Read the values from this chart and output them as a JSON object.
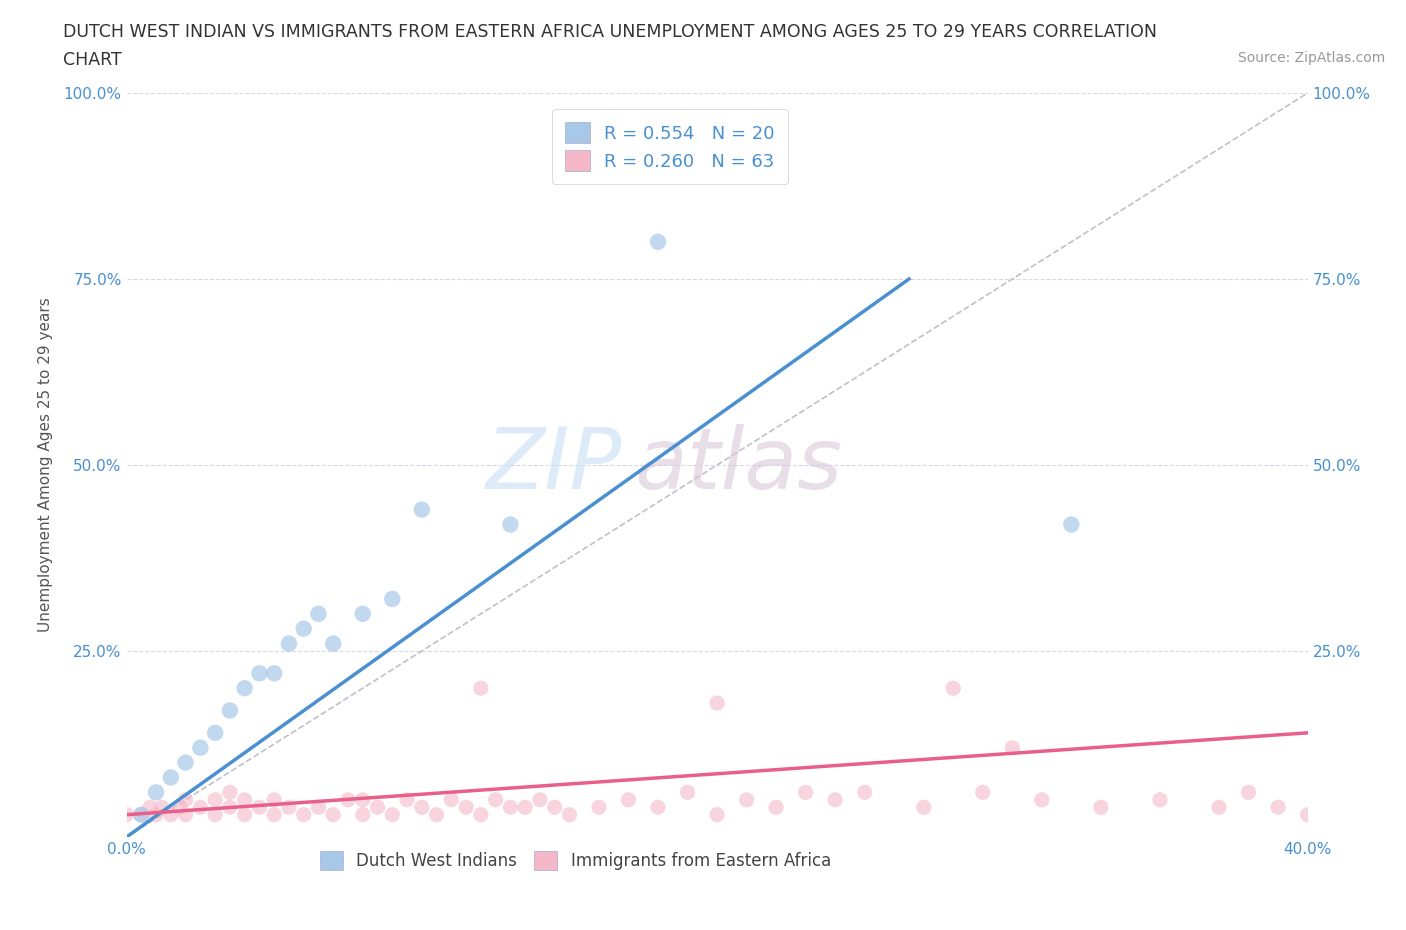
{
  "title_line1": "DUTCH WEST INDIAN VS IMMIGRANTS FROM EASTERN AFRICA UNEMPLOYMENT AMONG AGES 25 TO 29 YEARS CORRELATION",
  "title_line2": "CHART",
  "source_text": "Source: ZipAtlas.com",
  "ylabel": "Unemployment Among Ages 25 to 29 years",
  "xlim": [
    0.0,
    0.4
  ],
  "ylim": [
    0.0,
    1.0
  ],
  "blue_color": "#a8c8e8",
  "pink_color": "#f4b8c8",
  "blue_line_color": "#4a90d0",
  "pink_line_color": "#e8608a",
  "watermark_zip": "ZIP",
  "watermark_atlas": "atlas",
  "legend1_label": "R = 0.554   N = 20",
  "legend2_label": "R = 0.260   N = 63",
  "series1_name": "Dutch West Indians",
  "series2_name": "Immigrants from Eastern Africa",
  "blue_scatter_x": [
    0.005,
    0.01,
    0.015,
    0.02,
    0.025,
    0.03,
    0.035,
    0.04,
    0.045,
    0.05,
    0.055,
    0.06,
    0.065,
    0.07,
    0.08,
    0.09,
    0.1,
    0.13,
    0.18,
    0.32
  ],
  "blue_scatter_y": [
    0.03,
    0.06,
    0.08,
    0.1,
    0.12,
    0.14,
    0.17,
    0.2,
    0.22,
    0.22,
    0.26,
    0.28,
    0.3,
    0.26,
    0.3,
    0.32,
    0.44,
    0.42,
    0.8,
    0.42
  ],
  "pink_scatter_x": [
    0.0,
    0.005,
    0.008,
    0.01,
    0.012,
    0.015,
    0.018,
    0.02,
    0.02,
    0.025,
    0.03,
    0.03,
    0.035,
    0.035,
    0.04,
    0.04,
    0.045,
    0.05,
    0.05,
    0.055,
    0.06,
    0.065,
    0.07,
    0.075,
    0.08,
    0.08,
    0.085,
    0.09,
    0.095,
    0.1,
    0.105,
    0.11,
    0.115,
    0.12,
    0.125,
    0.13,
    0.135,
    0.14,
    0.145,
    0.15,
    0.16,
    0.17,
    0.18,
    0.19,
    0.2,
    0.21,
    0.22,
    0.23,
    0.24,
    0.25,
    0.27,
    0.29,
    0.31,
    0.33,
    0.35,
    0.37,
    0.38,
    0.39,
    0.4,
    0.28,
    0.3,
    0.12,
    0.2
  ],
  "pink_scatter_y": [
    0.03,
    0.03,
    0.04,
    0.03,
    0.04,
    0.03,
    0.04,
    0.03,
    0.05,
    0.04,
    0.03,
    0.05,
    0.04,
    0.06,
    0.03,
    0.05,
    0.04,
    0.03,
    0.05,
    0.04,
    0.03,
    0.04,
    0.03,
    0.05,
    0.03,
    0.05,
    0.04,
    0.03,
    0.05,
    0.04,
    0.03,
    0.05,
    0.04,
    0.03,
    0.05,
    0.04,
    0.04,
    0.05,
    0.04,
    0.03,
    0.04,
    0.05,
    0.04,
    0.06,
    0.03,
    0.05,
    0.04,
    0.06,
    0.05,
    0.06,
    0.04,
    0.06,
    0.05,
    0.04,
    0.05,
    0.04,
    0.06,
    0.04,
    0.03,
    0.2,
    0.12,
    0.2,
    0.18
  ],
  "blue_trend_x": [
    0.0,
    0.265
  ],
  "blue_trend_y": [
    0.0,
    0.75
  ],
  "pink_trend_x": [
    0.0,
    0.4
  ],
  "pink_trend_y": [
    0.03,
    0.14
  ],
  "ref_line_x": [
    0.0,
    0.4
  ],
  "ref_line_y": [
    0.0,
    1.0
  ],
  "grid_color": "#d8d8e8",
  "background_color": "#ffffff",
  "title_fontsize": 13,
  "axis_label_fontsize": 11,
  "tick_fontsize": 11,
  "tick_color": "#4a90d0"
}
